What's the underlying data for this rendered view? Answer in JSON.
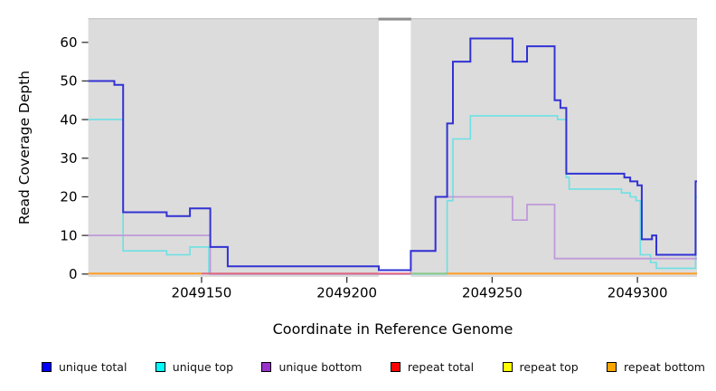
{
  "figure": {
    "xlabel": "Coordinate in Reference Genome",
    "ylabel": "Read Coverage Depth"
  },
  "chart_data": {
    "type": "line",
    "subtype": "step-coverage",
    "title": "",
    "xlabel": "Coordinate in Reference Genome",
    "ylabel": "Read Coverage Depth",
    "xlim": [
      2049111,
      2049320.5
    ],
    "ylim": [
      0,
      66
    ],
    "grid": false,
    "panel_background": "#dcdcdc",
    "legend_position": "bottom",
    "x_ticks": [
      {
        "label": "2049150",
        "x": 2049150
      },
      {
        "label": "2049200",
        "x": 2049200
      },
      {
        "label": "2049250",
        "x": 2049250
      },
      {
        "label": "2049300",
        "x": 2049300
      }
    ],
    "y_ticks": [
      {
        "label": "0",
        "y": 0
      },
      {
        "label": "10",
        "y": 10
      },
      {
        "label": "20",
        "y": 20
      },
      {
        "label": "30",
        "y": 30
      },
      {
        "label": "40",
        "y": 40
      },
      {
        "label": "50",
        "y": 50
      },
      {
        "label": "60",
        "y": 60
      }
    ],
    "gap_region": {
      "from": 2049211,
      "to": 2049222,
      "note": "white masked band, coverage suppressed"
    },
    "series": [
      {
        "name": "unique total",
        "legend_color": "#0000ff",
        "color": "#3232d4",
        "width": 2,
        "draw": true,
        "points": [
          [
            2049111,
            50
          ],
          [
            2049120,
            49
          ],
          [
            2049123,
            16
          ],
          [
            2049138,
            15
          ],
          [
            2049146,
            17
          ],
          [
            2049153,
            7
          ],
          [
            2049159,
            2
          ],
          [
            2049211,
            1
          ],
          [
            2049222,
            6
          ],
          [
            2049230.5,
            20
          ],
          [
            2049234.5,
            39
          ],
          [
            2049236.5,
            55
          ],
          [
            2049242.5,
            61
          ],
          [
            2049257,
            55
          ],
          [
            2049262,
            59
          ],
          [
            2049271.5,
            45
          ],
          [
            2049273.5,
            43
          ],
          [
            2049275.5,
            26
          ],
          [
            2049295.5,
            25
          ],
          [
            2049297.5,
            24
          ],
          [
            2049300,
            23
          ],
          [
            2049301.5,
            9
          ],
          [
            2049305,
            10
          ],
          [
            2049306.5,
            5
          ],
          [
            2049320,
            24
          ]
        ]
      },
      {
        "name": "unique top",
        "legend_color": "#00ffff",
        "color": "#6ce0e4",
        "width": 1.6,
        "draw": true,
        "points": [
          [
            2049111,
            40
          ],
          [
            2049123,
            6
          ],
          [
            2049138,
            5
          ],
          [
            2049146,
            7
          ],
          [
            2049152.5,
            0
          ],
          [
            2049234.5,
            19
          ],
          [
            2049236.5,
            35
          ],
          [
            2049242.5,
            41
          ],
          [
            2049272.5,
            40
          ],
          [
            2049275.5,
            25
          ],
          [
            2049276.5,
            22
          ],
          [
            2049294.5,
            21
          ],
          [
            2049297.5,
            20
          ],
          [
            2049299.5,
            19
          ],
          [
            2049301,
            5
          ],
          [
            2049304.5,
            3
          ],
          [
            2049306.5,
            1.5
          ],
          [
            2049320,
            20
          ]
        ]
      },
      {
        "name": "unique bottom",
        "legend_color": "#9933cc",
        "color": "#c09ada",
        "width": 1.8,
        "draw": true,
        "points": [
          [
            2049111,
            10
          ],
          [
            2049153,
            0
          ],
          [
            2049222,
            6
          ],
          [
            2049230.5,
            20
          ],
          [
            2049257,
            14
          ],
          [
            2049262,
            18
          ],
          [
            2049271.5,
            4
          ]
        ]
      },
      {
        "name": "repeat total",
        "legend_color": "#ff0000",
        "color": "#e06a80",
        "width": 1.8,
        "draw": false,
        "points": [
          [
            2049150,
            0
          ],
          [
            2049222,
            0
          ]
        ]
      },
      {
        "name": "repeat top",
        "legend_color": "#ffff00",
        "color": "#ffff00",
        "width": 1.5,
        "draw": false,
        "points": [
          [
            2049111,
            0
          ],
          [
            2049320.5,
            0
          ]
        ]
      },
      {
        "name": "repeat bottom",
        "legend_color": "#ffa500",
        "color": "#ff9d26",
        "width": 2,
        "draw": false,
        "points": [
          [
            2049111,
            0
          ],
          [
            2049320.5,
            0
          ]
        ]
      }
    ],
    "baseline_overlap_segments": [
      {
        "color": "#ff9d26",
        "from": 2049111,
        "to": 2049150
      },
      {
        "color": "#e06a80",
        "from": 2049150,
        "to": 2049222
      },
      {
        "color": "#8cc88c",
        "from": 2049222,
        "to": 2049234.5
      },
      {
        "color": "#ff9d26",
        "from": 2049234.5,
        "to": 2049320.5
      }
    ]
  }
}
